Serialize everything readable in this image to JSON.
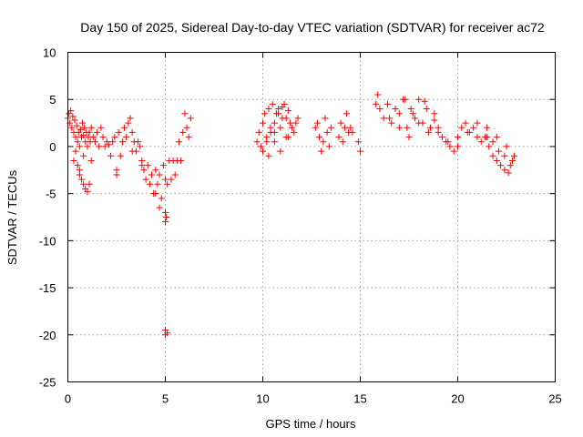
{
  "chart_data": {
    "type": "scatter",
    "title": "Day 150 of 2025, Sidereal Day-to-day VTEC variation (SDTVAR) for receiver ac72",
    "xlabel": "GPS time / hours",
    "ylabel": "SDTVAR / TECUs",
    "xlim": [
      0,
      25
    ],
    "ylim": [
      -25,
      10
    ],
    "xticks": [
      0,
      5,
      10,
      15,
      20,
      25
    ],
    "yticks": [
      10,
      5,
      0,
      -5,
      -10,
      -15,
      -20,
      -25
    ],
    "x_tick_labels": [
      "0",
      "5",
      "10",
      "15",
      "20",
      "25"
    ],
    "y_tick_labels": [
      "10",
      "5",
      "0",
      "-5",
      "-10",
      "-15",
      "-20",
      "-25"
    ],
    "grid": true,
    "marker": "+",
    "color": "#ff0000",
    "series": [
      {
        "name": "SDTVAR",
        "x": [
          0.0,
          0.05,
          0.1,
          0.15,
          0.2,
          0.25,
          0.3,
          0.35,
          0.4,
          0.45,
          0.5,
          0.55,
          0.6,
          0.65,
          0.7,
          0.75,
          0.8,
          0.85,
          0.9,
          0.95,
          1.0,
          1.05,
          1.1,
          1.15,
          1.2,
          1.3,
          1.4,
          1.5,
          1.6,
          1.7,
          1.8,
          1.9,
          2.0,
          2.1,
          2.2,
          2.3,
          2.4,
          2.5,
          2.6,
          2.7,
          2.8,
          2.9,
          3.0,
          3.1,
          3.2,
          3.3,
          3.4,
          3.5,
          3.6,
          3.7,
          3.8,
          3.9,
          4.0,
          4.1,
          4.2,
          4.3,
          4.4,
          4.5,
          4.6,
          4.7,
          4.8,
          4.9,
          5.0,
          5.05,
          5.1,
          5.2,
          5.3,
          5.4,
          5.5,
          5.6,
          5.7,
          5.8,
          5.9,
          6.0,
          6.1,
          6.2,
          6.3,
          0.5,
          0.6,
          0.7,
          0.8,
          0.9,
          1.0,
          1.1,
          0.3,
          0.4,
          0.6,
          0.8,
          1.2,
          2.5,
          3.3,
          3.8,
          4.5,
          4.7,
          5.0,
          5.0,
          5.0,
          5.0,
          5.1,
          9.7,
          9.8,
          9.9,
          10.0,
          10.1,
          10.2,
          10.3,
          10.4,
          10.5,
          10.6,
          10.7,
          10.8,
          10.9,
          11.0,
          11.1,
          11.2,
          11.3,
          11.4,
          11.5,
          11.6,
          11.7,
          11.8,
          10.0,
          10.2,
          10.4,
          10.6,
          10.8,
          11.0,
          11.2,
          10.3,
          10.6,
          10.9,
          11.3,
          12.7,
          12.8,
          12.9,
          13.0,
          13.1,
          13.2,
          13.3,
          13.4,
          13.5,
          13.9,
          14.0,
          14.1,
          14.2,
          14.3,
          14.4,
          14.5,
          14.6,
          14.9,
          15.0,
          15.8,
          15.9,
          16.0,
          16.2,
          16.4,
          16.6,
          16.8,
          17.0,
          17.2,
          17.4,
          17.6,
          17.8,
          18.0,
          18.2,
          18.4,
          18.6,
          18.8,
          19.0,
          19.2,
          19.4,
          19.6,
          19.8,
          20.0,
          20.2,
          20.4,
          20.6,
          20.8,
          21.0,
          21.2,
          21.4,
          21.6,
          21.8,
          22.0,
          22.2,
          22.4,
          22.6,
          22.8,
          16.5,
          17.0,
          17.5,
          18.0,
          18.5,
          19.0,
          19.5,
          20.0,
          20.5,
          21.0,
          21.5,
          22.0,
          22.5,
          22.9,
          21.5,
          21.8,
          22.1,
          22.4,
          22.7,
          17.3,
          17.7,
          18.3,
          18.8
        ],
        "y": [
          3.0,
          3.5,
          2.5,
          3.8,
          2.0,
          3.2,
          1.5,
          2.8,
          1.0,
          2.2,
          0.5,
          1.5,
          0.0,
          1.8,
          1.0,
          2.5,
          1.2,
          2.0,
          0.5,
          1.5,
          0.0,
          1.0,
          1.5,
          0.5,
          2.0,
          1.0,
          0.5,
          1.5,
          0.0,
          2.0,
          1.0,
          0.0,
          0.5,
          0.2,
          -1.0,
          0.5,
          1.0,
          -3.0,
          1.5,
          -1.0,
          0.5,
          2.0,
          1.0,
          2.5,
          3.0,
          1.5,
          0.5,
          -0.5,
          0.5,
          0.0,
          -2.0,
          -2.5,
          -3.5,
          -2.0,
          -4.0,
          -3.0,
          -5.0,
          -2.5,
          -4.0,
          -3.0,
          -5.5,
          -2.0,
          -3.5,
          -7.5,
          -4.0,
          -1.5,
          -3.5,
          -1.5,
          -3.0,
          -1.5,
          0.5,
          -1.5,
          1.5,
          3.5,
          2.0,
          1.0,
          3.0,
          -2.0,
          -3.0,
          -3.5,
          -4.0,
          -4.5,
          -4.8,
          -4.0,
          -1.5,
          -0.5,
          -2.5,
          -1.0,
          -1.5,
          -2.5,
          -0.5,
          -1.5,
          -5.0,
          -6.5,
          -8.0,
          -19.5,
          -20.0,
          -7.0,
          -19.8,
          0.5,
          1.5,
          0.0,
          2.5,
          3.5,
          1.0,
          4.0,
          2.0,
          4.5,
          1.5,
          3.5,
          4.0,
          2.0,
          3.0,
          4.5,
          1.0,
          3.8,
          2.5,
          2.0,
          1.5,
          2.5,
          3.0,
          -0.5,
          0.5,
          1.5,
          2.5,
          3.5,
          4.2,
          3.0,
          -1.0,
          0.5,
          -0.5,
          1.0,
          2.0,
          2.5,
          1.0,
          -0.5,
          0.5,
          3.0,
          1.5,
          0.0,
          2.0,
          1.0,
          2.5,
          0.5,
          2.0,
          3.5,
          1.5,
          2.0,
          1.5,
          0.5,
          -0.5,
          4.5,
          5.5,
          4.0,
          3.0,
          4.5,
          2.5,
          4.0,
          3.5,
          5.0,
          2.0,
          4.0,
          3.0,
          5.0,
          2.5,
          4.0,
          2.0,
          3.5,
          2.0,
          1.0,
          0.5,
          0.0,
          -0.5,
          1.0,
          2.0,
          2.5,
          1.5,
          2.0,
          1.0,
          0.5,
          1.0,
          0.0,
          -1.0,
          -1.5,
          -2.0,
          -2.5,
          -2.8,
          -1.5,
          3.0,
          2.0,
          1.0,
          2.5,
          1.5,
          1.5,
          0.5,
          0.0,
          1.5,
          2.5,
          2.0,
          1.0,
          0.0,
          -1.0,
          1.0,
          0.5,
          -0.5,
          -1.0,
          -2.0,
          5.0,
          3.5,
          4.8,
          2.8
        ]
      }
    ]
  }
}
